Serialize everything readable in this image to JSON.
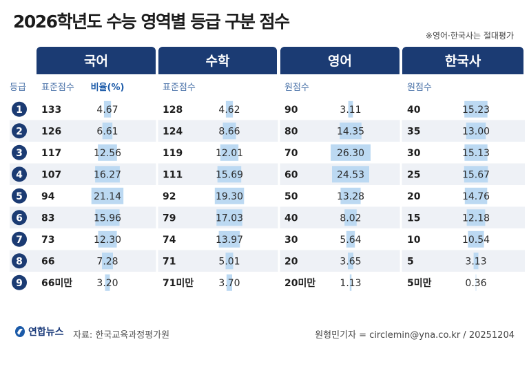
{
  "title": "2026학년도 수능 영역별 등급 구분 점수",
  "note": "※영어·한국사는 절대평가",
  "chart_data": {
    "type": "table",
    "row_header": "등급",
    "grades": [
      "1",
      "2",
      "3",
      "4",
      "5",
      "6",
      "7",
      "8",
      "9"
    ],
    "sections": [
      {
        "name": "국어",
        "col1": "표준점수",
        "col2": "비율(%)",
        "scores": [
          "133",
          "126",
          "117",
          "107",
          "94",
          "83",
          "73",
          "66",
          "66미만"
        ],
        "ratios": [
          4.67,
          6.61,
          12.56,
          16.27,
          21.14,
          15.96,
          12.3,
          7.28,
          3.2
        ]
      },
      {
        "name": "수학",
        "col1": "표준점수",
        "col2": "",
        "scores": [
          "128",
          "124",
          "119",
          "111",
          "92",
          "79",
          "74",
          "71",
          "71미만"
        ],
        "ratios": [
          4.62,
          8.66,
          12.01,
          15.69,
          19.3,
          17.03,
          13.97,
          5.01,
          3.7
        ]
      },
      {
        "name": "영어",
        "col1": "원점수",
        "col2": "",
        "scores": [
          "90",
          "80",
          "70",
          "60",
          "50",
          "40",
          "30",
          "20",
          "20미만"
        ],
        "ratios": [
          3.11,
          14.35,
          26.3,
          24.53,
          13.28,
          8.02,
          5.64,
          3.65,
          1.13
        ]
      },
      {
        "name": "한국사",
        "col1": "원점수",
        "col2": "",
        "scores": [
          "40",
          "35",
          "30",
          "25",
          "20",
          "15",
          "10",
          "5",
          "5미만"
        ],
        "ratios": [
          15.23,
          13.0,
          15.13,
          15.67,
          14.76,
          12.18,
          10.54,
          3.13,
          0.36
        ]
      }
    ]
  },
  "footer": {
    "logo": "연합뉴스",
    "source": "자료: 한국교육과정평가원",
    "credit": "원형민기자 = circlemin@yna.co.kr / 20251204"
  },
  "colors": {
    "header": "#1b3b73",
    "badge": "#1b3b73",
    "bar": "#bcd9f2",
    "row_alt": "#eef1f6"
  }
}
